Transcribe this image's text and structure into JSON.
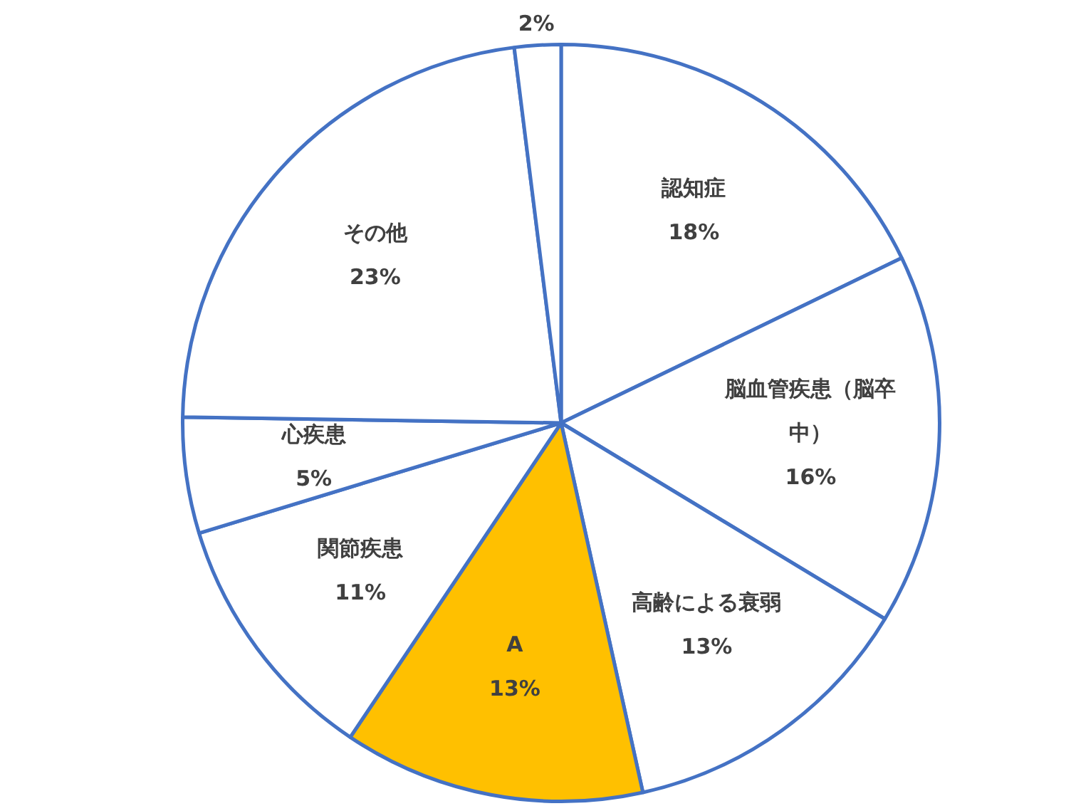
{
  "chart_data": {
    "type": "pie",
    "categories": [
      "認知症",
      "脳血管疾患（脳卒中）",
      "高齢による衰弱",
      "A",
      "関節疾患",
      "心疾患",
      "その他",
      null
    ],
    "values": [
      18,
      16,
      13,
      13,
      11,
      5,
      23,
      2
    ],
    "value_labels": [
      "18%",
      "16%",
      "13%",
      "13%",
      "11%",
      "5%",
      "23%",
      "2%"
    ],
    "colors": [
      "#ffffff",
      "#ffffff",
      "#ffffff",
      "#ffc000",
      "#ffffff",
      "#ffffff",
      "#ffffff",
      "#ffffff"
    ],
    "legend": false
  }
}
